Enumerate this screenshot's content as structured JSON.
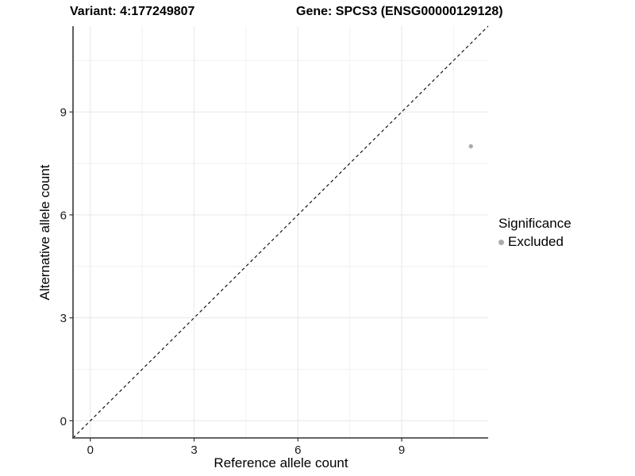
{
  "chart_data": {
    "type": "scatter",
    "title": "Variant: 4:177249807",
    "title_right": "Gene: SPCS3 (ENSG00000129128)",
    "xlabel": "Reference allele count",
    "ylabel": "Alternative allele count",
    "xlim": [
      -0.5,
      11.5
    ],
    "ylim": [
      -0.5,
      11.5
    ],
    "xticks": [
      0,
      3,
      6,
      9
    ],
    "yticks": [
      0,
      3,
      6,
      9
    ],
    "minor_ticks": [
      1.5,
      4.5,
      7.5,
      10.5
    ],
    "grid": "major and minor gridlines, white panel background",
    "legend_position": "right",
    "reference_line": {
      "slope": 1,
      "intercept": 0,
      "style": "dashed",
      "color": "#000000"
    },
    "series": [
      {
        "name": "Excluded",
        "color": "#ABABAB",
        "points": [
          {
            "x": 11,
            "y": 8
          }
        ]
      }
    ],
    "legend": {
      "title": "Significance",
      "items": [
        {
          "label": "Excluded",
          "color": "#ABABAB"
        }
      ]
    },
    "colors": {
      "axis_line": "#4D4D4D",
      "tick_mark": "#333333",
      "tick_label": "#1A1A1A",
      "grid_major": "#E7E7E7",
      "grid_minor": "#F2F2F2"
    }
  }
}
